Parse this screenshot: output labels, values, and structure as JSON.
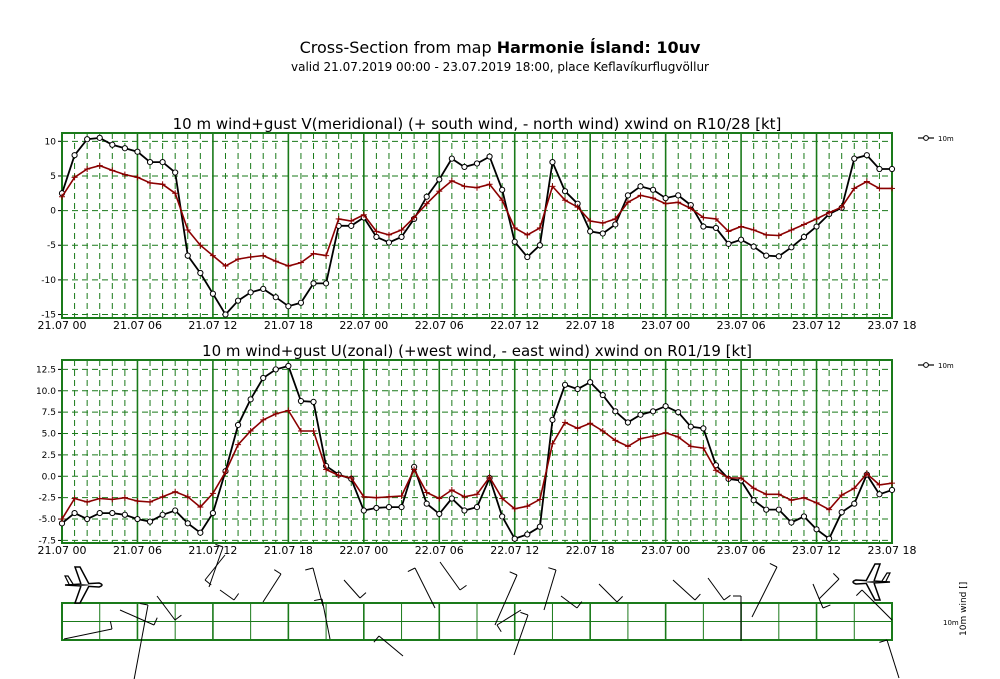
{
  "header": {
    "title_prefix": "Cross-Section from map ",
    "title_bold": "Harmonie Ísland: 10uv",
    "subtitle": "valid 21.07.2019 00:00 - 23.07.2019 18:00, place Keflavíkurflugvöllur"
  },
  "colors": {
    "frame": "#1a7a1a",
    "grid": "#1a7a1a",
    "wind": "#000000",
    "gust": "#8b0000"
  },
  "chart_data": [
    {
      "type": "line",
      "title": "10 m wind+gust V(meridional) (+ south wind, - north wind) xwind on R10/28 [kt]",
      "x": [
        0,
        1,
        2,
        3,
        4,
        5,
        6,
        7,
        8,
        9,
        10,
        11,
        12,
        13,
        14,
        15,
        16,
        17,
        18,
        19,
        20,
        21,
        22,
        23,
        24,
        25,
        26,
        27,
        28,
        29,
        30,
        31,
        32,
        33,
        34,
        35,
        36,
        37,
        38,
        39,
        40,
        41,
        42,
        43,
        44,
        45,
        46,
        47,
        48,
        49,
        50,
        51,
        52,
        53,
        54,
        55,
        56,
        57,
        58,
        59,
        60,
        61,
        62,
        63,
        64,
        65,
        66
      ],
      "xtick_positions": [
        0,
        6,
        12,
        18,
        24,
        30,
        36,
        42,
        48,
        54,
        60,
        66
      ],
      "xtick_labels": [
        "21.07 00",
        "21.07 06",
        "21.07 12",
        "21.07 18",
        "22.07 00",
        "22.07 06",
        "22.07 12",
        "22.07 18",
        "23.07 00",
        "23.07 06",
        "23.07 12",
        "23.07 18"
      ],
      "ylim": [
        -15.5,
        11.2
      ],
      "yticks": [
        10,
        5,
        0,
        -5,
        -10,
        -15
      ],
      "ytick_labels": [
        "10",
        "5",
        "0",
        "-5",
        "-10",
        "-15"
      ],
      "legend": "10m",
      "series": [
        {
          "name": "10m",
          "marker": "circle",
          "values": [
            2.5,
            8,
            10.3,
            10.5,
            9.5,
            9,
            8.5,
            7,
            7,
            5.5,
            -6.5,
            -9,
            -12,
            -15,
            -13,
            -11.8,
            -11.3,
            -12.5,
            -13.8,
            -13.3,
            -10.5,
            -10.5,
            -2.2,
            -2.2,
            -1,
            -3.8,
            -4.6,
            -3.8,
            -1.2,
            2,
            4.5,
            7.5,
            6.3,
            6.8,
            7.8,
            3,
            -4.5,
            -6.7,
            -5,
            7,
            2.8,
            1,
            -3,
            -3.3,
            -2,
            2.2,
            3.5,
            3,
            1.8,
            2.2,
            0.8,
            -2.3,
            -2.5,
            -4.8,
            -4.2,
            -5.2,
            -6.5,
            -6.6,
            -5.3,
            -3.8,
            -2.3,
            -0.5,
            0.4,
            7.5,
            8,
            6,
            6
          ]
        },
        {
          "name": "",
          "marker": "plus",
          "values": [
            2,
            4.8,
            6,
            6.5,
            5.8,
            5.2,
            4.8,
            4,
            3.8,
            2.5,
            -2.8,
            -5,
            -6.5,
            -8,
            -7,
            -6.7,
            -6.5,
            -7.3,
            -8,
            -7.5,
            -6.2,
            -6.5,
            -1.2,
            -1.5,
            -0.6,
            -3,
            -3.5,
            -2.8,
            -1,
            1,
            2.8,
            4.3,
            3.5,
            3.3,
            3.8,
            1.5,
            -2.5,
            -3.5,
            -2.5,
            3.5,
            1.5,
            0.5,
            -1.5,
            -1.8,
            -1.2,
            1.2,
            2.2,
            1.8,
            1,
            1.2,
            0.3,
            -1,
            -1.2,
            -3,
            -2.3,
            -2.8,
            -3.5,
            -3.6,
            -2.8,
            -2,
            -1.2,
            -0.3,
            0.5,
            3.2,
            4.2,
            3.2,
            3.2
          ]
        }
      ]
    },
    {
      "type": "line",
      "title": "10 m wind+gust U(zonal) (+west wind, - east wind) xwind on R01/19 [kt]",
      "x": [
        0,
        1,
        2,
        3,
        4,
        5,
        6,
        7,
        8,
        9,
        10,
        11,
        12,
        13,
        14,
        15,
        16,
        17,
        18,
        19,
        20,
        21,
        22,
        23,
        24,
        25,
        26,
        27,
        28,
        29,
        30,
        31,
        32,
        33,
        34,
        35,
        36,
        37,
        38,
        39,
        40,
        41,
        42,
        43,
        44,
        45,
        46,
        47,
        48,
        49,
        50,
        51,
        52,
        53,
        54,
        55,
        56,
        57,
        58,
        59,
        60,
        61,
        62,
        63,
        64,
        65,
        66
      ],
      "xtick_positions": [
        0,
        6,
        12,
        18,
        24,
        30,
        36,
        42,
        48,
        54,
        60,
        66
      ],
      "xtick_labels": [
        "21.07 00",
        "21.07 06",
        "21.07 12",
        "21.07 18",
        "22.07 00",
        "22.07 06",
        "22.07 12",
        "22.07 18",
        "23.07 00",
        "23.07 06",
        "23.07 12",
        "23.07 18"
      ],
      "ylim": [
        -7.8,
        13.6
      ],
      "yticks": [
        12.5,
        10,
        7.5,
        5,
        2.5,
        0,
        -2.5,
        -5,
        -7.5
      ],
      "ytick_labels": [
        "12.5",
        "10.0",
        "7.5",
        "5.0",
        "2.5",
        "0.0",
        "-2.5",
        "-5.0",
        "-7.5"
      ],
      "legend": "10m",
      "series": [
        {
          "name": "10m",
          "marker": "circle",
          "values": [
            -5.5,
            -4.3,
            -5,
            -4.3,
            -4.3,
            -4.5,
            -5,
            -5.3,
            -4.5,
            -4,
            -5.5,
            -6.6,
            -4.3,
            0.6,
            6,
            9,
            11.5,
            12.5,
            12.9,
            8.8,
            8.7,
            1.2,
            0.2,
            -0.3,
            -4,
            -3.7,
            -3.6,
            -3.6,
            1.1,
            -3.2,
            -4.4,
            -2.6,
            -4,
            -3.6,
            -0.2,
            -4.7,
            -7.3,
            -6.8,
            -5.9,
            6.6,
            10.7,
            10.2,
            11,
            9.5,
            7.6,
            6.3,
            7.2,
            7.6,
            8.2,
            7.5,
            5.8,
            5.6,
            1.3,
            -0.3,
            -0.5,
            -2.8,
            -3.9,
            -3.9,
            -5.4,
            -4.7,
            -6.2,
            -7.3,
            -4.2,
            -3.2,
            0.2,
            -2.1,
            -1.6
          ]
        },
        {
          "name": "",
          "marker": "plus",
          "values": [
            -5,
            -2.6,
            -3,
            -2.6,
            -2.7,
            -2.5,
            -2.9,
            -3,
            -2.4,
            -1.8,
            -2.4,
            -3.6,
            -2,
            0.5,
            3.7,
            5.3,
            6.6,
            7.3,
            7.7,
            5.3,
            5.3,
            0.8,
            0.1,
            -0.2,
            -2.4,
            -2.5,
            -2.4,
            -2.3,
            0.8,
            -1.9,
            -2.6,
            -1.6,
            -2.4,
            -2.1,
            -0.1,
            -2.6,
            -3.8,
            -3.5,
            -2.7,
            3.8,
            6.3,
            5.6,
            6.2,
            5.3,
            4.2,
            3.5,
            4.4,
            4.7,
            5.1,
            4.6,
            3.5,
            3.3,
            0.7,
            -0.2,
            -0.2,
            -1.4,
            -2.1,
            -2.1,
            -2.8,
            -2.5,
            -3.1,
            -3.9,
            -2.2,
            -1.4,
            0.3,
            -1,
            -0.8
          ]
        }
      ]
    }
  ],
  "strip": {
    "right_label_1": "10m",
    "right_label_2": "10m wind []"
  }
}
